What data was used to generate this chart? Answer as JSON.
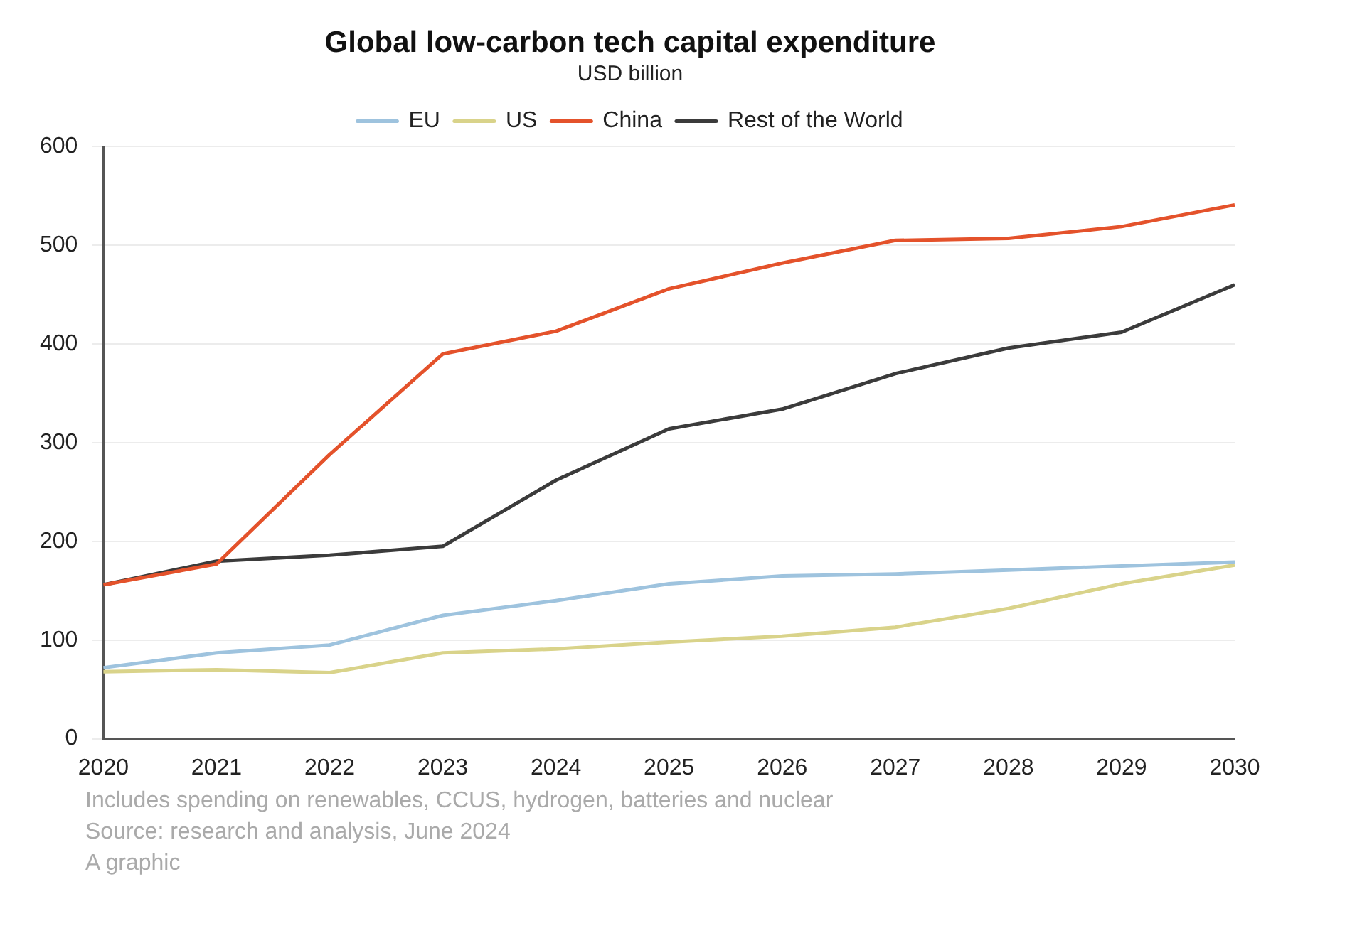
{
  "chart_data": {
    "type": "line",
    "title": "Global low-carbon tech capital expenditure",
    "subtitle": "USD billion",
    "categories": [
      "2020",
      "2021",
      "2022",
      "2023",
      "2024",
      "2025",
      "2026",
      "2027",
      "2028",
      "2029",
      "2030"
    ],
    "series": [
      {
        "name": "EU",
        "color": "#9ec3de",
        "values": [
          72,
          87,
          95,
          125,
          140,
          157,
          165,
          167,
          171,
          175,
          179
        ]
      },
      {
        "name": "US",
        "color": "#d9d38a",
        "values": [
          68,
          70,
          67,
          87,
          91,
          98,
          104,
          113,
          132,
          157,
          176
        ]
      },
      {
        "name": "China",
        "color": "#e4522b",
        "values": [
          156,
          177,
          288,
          390,
          413,
          456,
          482,
          505,
          507,
          519,
          541
        ]
      },
      {
        "name": "Rest of the World",
        "color": "#3b3b3b",
        "values": [
          156,
          180,
          186,
          195,
          262,
          314,
          334,
          370,
          396,
          412,
          460
        ]
      }
    ],
    "ylim": [
      0,
      600
    ],
    "yticks": [
      0,
      100,
      200,
      300,
      400,
      500,
      600
    ],
    "grid": "y",
    "legend": "top",
    "marker": "none",
    "line_style": "solid",
    "annotations": [
      "Includes spending on renewables, CCUS, hydrogen, batteries and nuclear",
      "Source: research and analysis, June 2024",
      "A graphic"
    ]
  }
}
